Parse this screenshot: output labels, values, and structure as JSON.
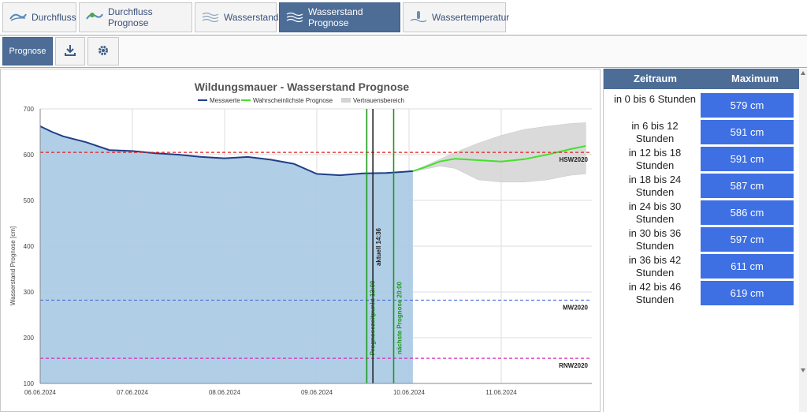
{
  "tabs": [
    {
      "label": "Durchfluss",
      "icon": "flow-icon"
    },
    {
      "label": "Durchfluss Prognose",
      "icon": "flow-forecast-icon"
    },
    {
      "label": "Wasserstand",
      "icon": "water-level-icon"
    },
    {
      "label": "Wasserstand Prognose",
      "icon": "water-level-forecast-icon",
      "active": true
    },
    {
      "label": "Wassertemperatur",
      "icon": "water-temperature-icon"
    }
  ],
  "subbar": {
    "prognose_label": "Prognose",
    "download_icon": "download-icon",
    "settings_icon": "gear-icon"
  },
  "table": {
    "headers": {
      "zeitraum": "Zeitraum",
      "maximum": "Maximum"
    },
    "rows": [
      {
        "zeitraum": "in 0 bis 6 Stunden",
        "maximum": "579 cm"
      },
      {
        "zeitraum": "in 6 bis 12 Stunden",
        "maximum": "591 cm"
      },
      {
        "zeitraum": "in 12 bis 18 Stunden",
        "maximum": "591 cm"
      },
      {
        "zeitraum": "in 18 bis 24 Stunden",
        "maximum": "587 cm"
      },
      {
        "zeitraum": "in 24 bis 30 Stunden",
        "maximum": "586 cm"
      },
      {
        "zeitraum": "in 30 bis 36 Stunden",
        "maximum": "597 cm"
      },
      {
        "zeitraum": "in 36 bis 42 Stunden",
        "maximum": "611 cm"
      },
      {
        "zeitraum": "in 42 bis 46 Stunden",
        "maximum": "619 cm"
      }
    ]
  },
  "chart_data": {
    "type": "area",
    "title": "Wildungsmauer - Wasserstand Prognose",
    "ylabel": "Wasserstand Prognose [cm]",
    "xlabel": "",
    "ylim": [
      100,
      700
    ],
    "yticks": [
      100,
      200,
      300,
      400,
      500,
      600,
      700
    ],
    "xlim": [
      "06.06.2024 00:00",
      "11.06.2024 22:00"
    ],
    "xticks": [
      "06.06.2024",
      "07.06.2024",
      "08.06.2024",
      "09.06.2024",
      "10.06.2024",
      "11.06.2024"
    ],
    "grid": true,
    "legend": {
      "position": "top",
      "entries": [
        {
          "name": "Messwerte",
          "color": "#1f3f86"
        },
        {
          "name": "Wahrscheinlichste Prognose",
          "color": "#44e02a"
        },
        {
          "name": "Vertrauensbereich",
          "color": "#d3d3d3"
        }
      ]
    },
    "series": [
      {
        "name": "Messwerte",
        "color": "#1f3f86",
        "fill": "#a9c9e4",
        "points": [
          [
            "06.06.2024 00:00",
            662
          ],
          [
            "06.06.2024 03:00",
            650
          ],
          [
            "06.06.2024 06:00",
            640
          ],
          [
            "06.06.2024 12:00",
            627
          ],
          [
            "06.06.2024 18:00",
            610
          ],
          [
            "07.06.2024 00:00",
            608
          ],
          [
            "07.06.2024 06:00",
            603
          ],
          [
            "07.06.2024 12:00",
            600
          ],
          [
            "07.06.2024 18:00",
            595
          ],
          [
            "08.06.2024 00:00",
            592
          ],
          [
            "08.06.2024 06:00",
            595
          ],
          [
            "08.06.2024 12:00",
            589
          ],
          [
            "08.06.2024 18:00",
            580
          ],
          [
            "09.06.2024 00:00",
            558
          ],
          [
            "09.06.2024 06:00",
            555
          ],
          [
            "09.06.2024 12:00",
            559
          ],
          [
            "09.06.2024 18:00",
            560
          ],
          [
            "09.06.2024 22:00",
            562
          ],
          [
            "10.06.2024 01:00",
            564
          ]
        ]
      },
      {
        "name": "Wahrscheinlichste Prognose",
        "color": "#44e02a",
        "points": [
          [
            "10.06.2024 01:00",
            564
          ],
          [
            "10.06.2024 04:00",
            572
          ],
          [
            "10.06.2024 08:00",
            585
          ],
          [
            "10.06.2024 12:00",
            591
          ],
          [
            "10.06.2024 18:00",
            588
          ],
          [
            "11.06.2024 00:00",
            585
          ],
          [
            "11.06.2024 06:00",
            590
          ],
          [
            "11.06.2024 12:00",
            600
          ],
          [
            "11.06.2024 18:00",
            612
          ],
          [
            "11.06.2024 22:00",
            619
          ]
        ]
      },
      {
        "name": "Vertrauensbereich",
        "color": "#d3d3d3",
        "upper": [
          [
            "10.06.2024 01:00",
            564
          ],
          [
            "10.06.2024 04:00",
            575
          ],
          [
            "10.06.2024 08:00",
            590
          ],
          [
            "10.06.2024 12:00",
            605
          ],
          [
            "10.06.2024 18:00",
            625
          ],
          [
            "11.06.2024 00:00",
            642
          ],
          [
            "11.06.2024 06:00",
            655
          ],
          [
            "11.06.2024 12:00",
            662
          ],
          [
            "11.06.2024 18:00",
            668
          ],
          [
            "11.06.2024 22:00",
            670
          ]
        ],
        "lower": [
          [
            "10.06.2024 01:00",
            564
          ],
          [
            "10.06.2024 04:00",
            568
          ],
          [
            "10.06.2024 08:00",
            575
          ],
          [
            "10.06.2024 12:00",
            570
          ],
          [
            "10.06.2024 18:00",
            545
          ],
          [
            "11.06.2024 00:00",
            540
          ],
          [
            "11.06.2024 06:00",
            540
          ],
          [
            "11.06.2024 12:00",
            545
          ],
          [
            "11.06.2024 18:00",
            555
          ],
          [
            "11.06.2024 22:00",
            558
          ]
        ]
      }
    ],
    "reference_lines": [
      {
        "label": "HSW2020",
        "value": 605,
        "color": "#e02020"
      },
      {
        "label": "MW2020",
        "value": 282,
        "color": "#4a6ed6"
      },
      {
        "label": "RNW2020",
        "value": 155,
        "color": "#d52fb8"
      }
    ],
    "vertical_markers": [
      {
        "label": "Prognosezeitpunkt 13:00",
        "x": "09.06.2024 13:00",
        "color": "#1e9a1e"
      },
      {
        "label": "aktuell 14:36",
        "x": "09.06.2024 14:36",
        "color": "#222222"
      },
      {
        "label": "nächste Prognose 20:00",
        "x": "09.06.2024 20:00",
        "color": "#1e9a1e"
      }
    ]
  }
}
